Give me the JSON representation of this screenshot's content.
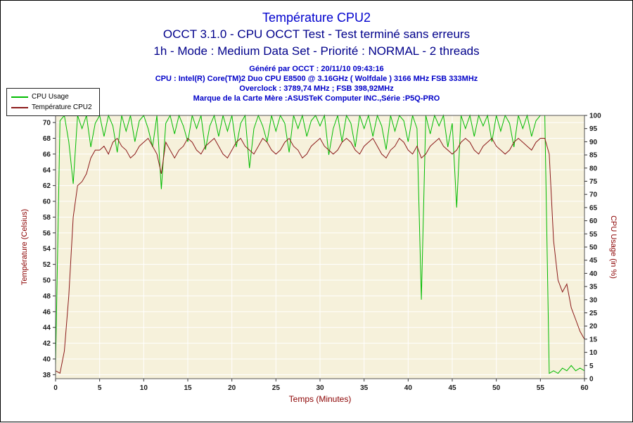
{
  "header": {
    "title": "Température CPU2",
    "subtitle_line1": "OCCT 3.1.0 - CPU OCCT Test - Test terminé sans erreurs",
    "subtitle_line2": "1h - Mode : Medium Data Set - Priorité : NORMAL - 2 threads",
    "generated": "Généré par OCCT : 20/11/10 09:43:16",
    "cpu": "CPU : Intel(R) Core(TM)2 Duo CPU E8500 @ 3.16GHz ( Wolfdale ) 3166 MHz FSB 333MHz",
    "overclock": "Overclock : 3789,74 MHz ; FSB 398,92MHz",
    "motherboard": "Marque de la Carte Mère :ASUSTeK Computer INC.,Série :P5Q-PRO"
  },
  "legend": {
    "items": [
      {
        "label": "CPU Usage",
        "color": "#00BB00"
      },
      {
        "label": "Température CPU2",
        "color": "#8B1A1A"
      }
    ]
  },
  "colors": {
    "axis_title": "#8B0000",
    "tick_label": "#1A1A1A",
    "plot_border": "#555555",
    "tick_mark": "#333333"
  },
  "chart_data": {
    "type": "line",
    "title": "Température CPU2",
    "xlabel": "Temps (Minutes)",
    "ylabel_left": "Température (Celsius)",
    "ylabel_right": "CPU Usage (in %)",
    "x_range": [
      0,
      60
    ],
    "x_ticks": [
      0,
      5,
      10,
      15,
      20,
      25,
      30,
      35,
      40,
      45,
      50,
      55,
      60
    ],
    "y_left_range": [
      37.5,
      70.9
    ],
    "y_left_ticks": [
      38,
      40,
      42,
      44,
      46,
      48,
      50,
      52,
      54,
      56,
      58,
      60,
      62,
      64,
      66,
      68,
      70
    ],
    "y_right_range": [
      0,
      100
    ],
    "y_right_ticks": [
      0,
      5,
      10,
      15,
      20,
      25,
      30,
      35,
      40,
      45,
      50,
      55,
      60,
      65,
      70,
      75,
      80,
      85,
      90,
      95,
      100
    ],
    "x_step_minutes": 0.5,
    "grid": true,
    "legend_position": "top-left",
    "plot_bg": "#F6F1DB",
    "grid_color": "#FFFFFF",
    "series": [
      {
        "name": "CPU Usage",
        "axis": "right",
        "color": "#00BB00",
        "values": [
          5,
          98,
          100,
          90,
          74,
          100,
          95,
          100,
          88,
          97,
          100,
          92,
          100,
          96,
          86,
          100,
          94,
          100,
          90,
          98,
          100,
          95,
          88,
          100,
          72,
          97,
          100,
          93,
          100,
          96,
          90,
          100,
          95,
          100,
          87,
          96,
          100,
          92,
          100,
          94,
          100,
          88,
          97,
          100,
          80,
          95,
          100,
          96,
          90,
          100,
          94,
          100,
          97,
          86,
          100,
          95,
          100,
          92,
          98,
          100,
          96,
          100,
          85,
          95,
          100,
          90,
          100,
          97,
          88,
          100,
          95,
          100,
          92,
          100,
          96,
          87,
          100,
          94,
          100,
          98,
          90,
          100,
          95,
          30,
          100,
          93,
          100,
          96,
          100,
          88,
          97,
          65,
          100,
          95,
          100,
          92,
          100,
          96,
          100,
          90,
          100,
          94,
          100,
          97,
          88,
          100,
          95,
          100,
          92,
          98,
          100,
          100,
          2,
          3,
          2,
          4,
          3,
          5,
          3,
          4,
          3
        ]
      },
      {
        "name": "Température CPU2",
        "axis": "left",
        "color": "#8B1A1A",
        "values": [
          38.5,
          38.2,
          41,
          48,
          58,
          62,
          62.5,
          63.5,
          65.5,
          66.5,
          66.5,
          67,
          66,
          67.5,
          68,
          67,
          66.5,
          65.5,
          66,
          67,
          67.5,
          68,
          67,
          66,
          63.5,
          67.5,
          66.5,
          65.5,
          66.5,
          67,
          68,
          67.5,
          66.5,
          66,
          67,
          67.5,
          68,
          67,
          66,
          65.5,
          66.5,
          67.5,
          68,
          67,
          66.5,
          66,
          67,
          68,
          67.5,
          66.5,
          66,
          66.5,
          67.5,
          68,
          67,
          66.5,
          65.5,
          66,
          67,
          67.5,
          68,
          67,
          66.5,
          66,
          66.5,
          67.5,
          68,
          67.5,
          66.5,
          66,
          67,
          67.5,
          68,
          67,
          66,
          65.5,
          66.5,
          67,
          68,
          67.5,
          66.5,
          66,
          67,
          65.5,
          66,
          67,
          67.5,
          68,
          67,
          66.5,
          66,
          66.5,
          67.5,
          68,
          67.5,
          66.5,
          66,
          67,
          67.5,
          68,
          67,
          66.5,
          66,
          66.5,
          67.5,
          68,
          67.5,
          67,
          66.5,
          67.5,
          68,
          68,
          66,
          55,
          50,
          48.5,
          49.5,
          46.5,
          45,
          43.5,
          42.5
        ]
      }
    ]
  }
}
